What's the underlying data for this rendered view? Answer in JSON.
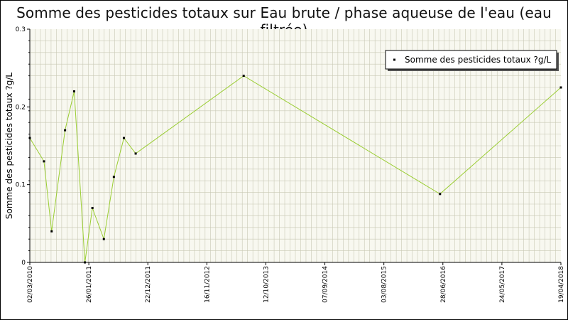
{
  "chart_data": {
    "type": "line",
    "title": "Somme des pesticides totaux sur Eau brute / phase aqueuse de l'eau (eau filtrée)",
    "ylabel": "Somme des pesticides totaux ?g/L",
    "xlabel": "",
    "ylim": [
      0,
      0.3
    ],
    "y_ticks": [
      "0",
      "0.1",
      "0.2",
      "0.3"
    ],
    "x_range": [
      "2010-03-02",
      "2018-04-19"
    ],
    "x_ticks": [
      "02/03/2010",
      "26/01/2011",
      "22/12/2011",
      "16/11/2012",
      "12/10/2013",
      "07/09/2014",
      "03/08/2015",
      "28/06/2016",
      "24/05/2017",
      "19/04/2018"
    ],
    "grid": true,
    "legend_position": "top-right",
    "colors": {
      "line": "#9acd32",
      "plot_bg": "#f8f8f0",
      "grid": "#c8c8b4",
      "marker": "#000000"
    },
    "series": [
      {
        "name": "Somme des pesticides totaux ?g/L",
        "points": [
          {
            "x": "2010-03-02",
            "y": 0.16
          },
          {
            "x": "2010-05-20",
            "y": 0.13
          },
          {
            "x": "2010-07-02",
            "y": 0.04
          },
          {
            "x": "2010-09-15",
            "y": 0.17
          },
          {
            "x": "2010-11-05",
            "y": 0.22
          },
          {
            "x": "2011-01-04",
            "y": 0.0
          },
          {
            "x": "2011-02-15",
            "y": 0.07
          },
          {
            "x": "2011-04-20",
            "y": 0.03
          },
          {
            "x": "2011-06-15",
            "y": 0.11
          },
          {
            "x": "2011-08-10",
            "y": 0.16
          },
          {
            "x": "2011-10-15",
            "y": 0.14
          },
          {
            "x": "2013-06-10",
            "y": 0.24
          },
          {
            "x": "2016-06-12",
            "y": 0.088
          },
          {
            "x": "2018-04-19",
            "y": 0.225
          }
        ]
      }
    ]
  }
}
